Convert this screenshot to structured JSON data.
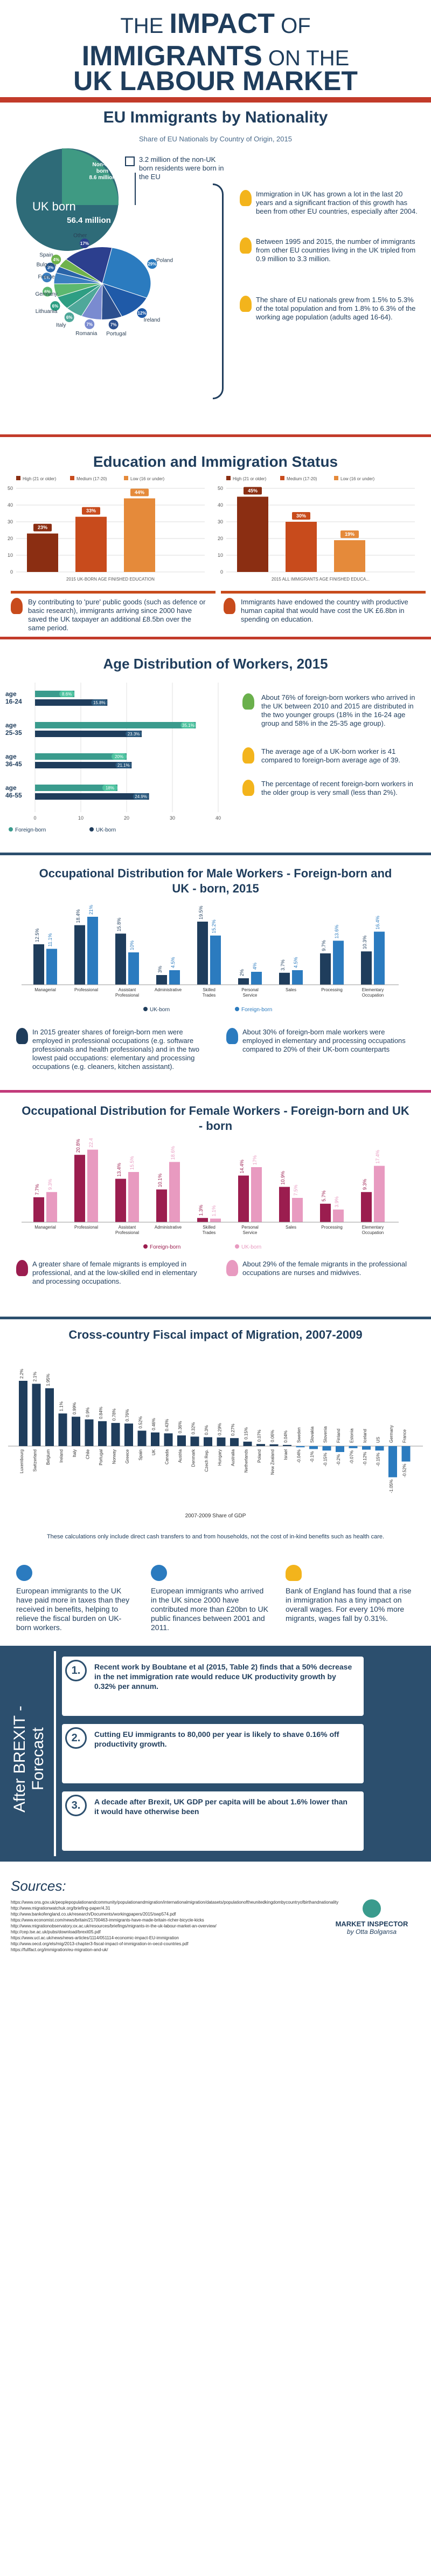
{
  "header": {
    "line1_pre": "THE",
    "line1_bold": "IMPACT",
    "line1_post": "OF",
    "line2_bold": "IMMIGRANTS",
    "line2_post": "ON",
    "line2b": "THE",
    "line3": "UK LABOUR MARKET"
  },
  "colors": {
    "navy": "#1f3d5c",
    "blue": "#2b7bbf",
    "teal": "#3a9b8d",
    "green": "#6ab04c",
    "rust": "#c84b1c",
    "orange": "#e58a3a",
    "pink": "#c23b7a",
    "lightpink": "#e89ac0",
    "darkbar": "#1f3d5c"
  },
  "s1": {
    "title": "EU Immigrants by Nationality",
    "subtitle": "Share of EU Nationals by Country of Origin, 2015",
    "uk_born_label": "UK born",
    "uk_born_value": "56.4 million",
    "nonuk_label": "Non-UK born",
    "nonuk_value": "8.6 million",
    "callout": "3.2 million of the non-UK born residents were born in the EU",
    "note1": "Immigration in UK has grown a lot in the last 20 years and a significant fraction of this growth has been from other EU countries, especially after 2004.",
    "note2": "Between 1995 and 2015, the number of immigrants from other EU countries living in the UK tripled from 0.9 million to 3.3 million.",
    "note3": "The share of EU nationals grew from 1.5% to 5.3% of the total population and from 1.8% to 6.3% of the working age population (adults aged 16-64)."
  },
  "chart_data": [
    {
      "type": "pie",
      "title": "Share of EU Nationals by Country of Origin, 2015",
      "categories": [
        "Poland",
        "Ireland",
        "Portugal",
        "Romania",
        "Italy",
        "Lithuania",
        "Germany",
        "France",
        "Bulgaria",
        "Spain",
        "Other"
      ],
      "values": [
        29,
        12,
        7,
        7,
        6,
        6,
        6,
        5,
        3,
        4,
        17
      ]
    },
    {
      "type": "bar",
      "title": "Education and Immigration Status",
      "xlabel": "2015 UK-BORN AGE FINISHED EDUCATION",
      "categories": [
        "High (21 or older)",
        "Medium (17-20)",
        "Low (16 or under)"
      ],
      "values": [
        23,
        33,
        44
      ],
      "ylim": [
        0,
        50
      ]
    },
    {
      "type": "bar",
      "xlabel": "2015 ALL IMMIGRANTS AGE FINISHED EDUCA...",
      "categories": [
        "High (21 or older)",
        "Medium (17-20)",
        "Low (16 or under)"
      ],
      "values": [
        45,
        30,
        19
      ],
      "ylim": [
        0,
        50
      ]
    },
    {
      "type": "bar",
      "title": "Age Distribution of Workers, 2015",
      "categories": [
        "age 16-24",
        "age 25-35",
        "age 36-45",
        "age 46-55"
      ],
      "series": [
        {
          "name": "Foreign-born",
          "values": [
            8.6,
            35.1,
            20,
            18
          ]
        },
        {
          "name": "UK-born",
          "values": [
            15.8,
            23.3,
            21.1,
            24.9
          ]
        }
      ],
      "xlim": [
        0,
        40
      ]
    },
    {
      "type": "bar",
      "title": "Occupational Distribution for Male Workers - Foreign-born and UK - born, 2015",
      "categories": [
        "Managerial",
        "Professional",
        "Assistant Professional",
        "Administrative",
        "Skilled Trades",
        "Personal Service",
        "Sales",
        "Processing",
        "Elementary Occupation"
      ],
      "series": [
        {
          "name": "UK-born",
          "values": [
            12.5,
            18.4,
            15.8,
            3.0,
            19.5,
            2.0,
            3.7,
            9.7,
            10.3
          ]
        },
        {
          "name": "Foreign-born",
          "values": [
            11.1,
            21.0,
            10.0,
            4.5,
            15.2,
            4.0,
            4.5,
            13.6,
            16.4
          ]
        }
      ],
      "ylim": [
        0,
        25
      ]
    },
    {
      "type": "bar",
      "title": "Occupational Distribution for Female Workers - Foreign-born and UK - born",
      "categories": [
        "Managerial",
        "Professional",
        "Assistant Professional",
        "Administrative",
        "Skilled Trades",
        "Personal Service",
        "Sales",
        "Processing",
        "Elementary Occupation"
      ],
      "series": [
        {
          "name": "Foreign-born",
          "values": [
            7.7,
            20.8,
            13.4,
            10.1,
            1.3,
            14.4,
            10.9,
            5.7,
            9.3
          ]
        },
        {
          "name": "UK-born",
          "values": [
            9.3,
            22.4,
            15.5,
            18.6,
            1.1,
            17.0,
            7.5,
            3.9,
            17.4
          ]
        }
      ],
      "ylim": [
        0,
        25
      ]
    },
    {
      "type": "bar",
      "title": "Cross-country Fiscal impact of Migration, 2007-2009",
      "xlabel": "2007-2009 Share of GDP",
      "categories": [
        "Luxembourg",
        "Switzerland",
        "Belgium",
        "Ireland",
        "Italy",
        "Chile",
        "Portugal",
        "Norway",
        "Greece",
        "Spain",
        "UK",
        "Canada",
        "Austria",
        "Denmark",
        "Czech Rep.",
        "Hungary",
        "Australia",
        "Netherlands",
        "Poland",
        "New Zealand",
        "Israel",
        "Sweden",
        "Slovakia",
        "Slovenia",
        "Finland",
        "Estonia",
        "Iceland",
        "US",
        "Germany",
        "France"
      ],
      "values": [
        2.2,
        2.1,
        1.95,
        1.1,
        0.99,
        0.9,
        0.84,
        0.78,
        0.76,
        0.52,
        0.46,
        0.43,
        0.36,
        0.32,
        0.3,
        0.29,
        0.27,
        0.15,
        0.07,
        0.06,
        0.04,
        -0.04,
        -0.1,
        -0.15,
        -0.2,
        -0.07,
        -0.12,
        -0.15,
        -1.05,
        -0.52
      ],
      "ylim": [
        -1.5,
        2.5
      ]
    }
  ],
  "s2": {
    "title": "Education and Immigration Status",
    "legend": [
      "High (21 or older)",
      "Medium (17-20)",
      "Low (16 or under)"
    ],
    "labels_left": [
      "23%",
      "33%",
      "44%"
    ],
    "labels_right": [
      "45%",
      "30%",
      "19%"
    ],
    "yticks": [
      "0",
      "10",
      "20",
      "30",
      "40",
      "50"
    ],
    "xlabel_left": "2015 UK-BORN AGE FINISHED EDUCATION",
    "xlabel_right": "2015 ALL IMMIGRANTS AGE FINISHED EDUCA...",
    "note_left": "By contributing to 'pure' public goods (such as defence or basic research), immigrants arriving since 2000 have saved the UK taxpayer an additional £8.5bn over the same period.",
    "note_right": "Immigrants have endowed the country with productive human capital that would have cost the UK £6.8bn in spending on education."
  },
  "s3": {
    "title": "Age Distribution of Workers, 2015",
    "rows": [
      {
        "age": "age",
        "range": "16-24",
        "fb": "8.6%",
        "uk": "15.8%"
      },
      {
        "age": "age",
        "range": "25-35",
        "fb": "35.1%",
        "uk": "23.3%"
      },
      {
        "age": "age",
        "range": "36-45",
        "fb": "20%",
        "uk": "21.1%"
      },
      {
        "age": "age",
        "range": "46-55",
        "fb": "18%",
        "uk": "24.9%"
      }
    ],
    "xticks": [
      "0",
      "10",
      "20",
      "30",
      "40"
    ],
    "legend_fb": "Foreign-born",
    "legend_uk": "UK-born",
    "note1": "About 76% of foreign-born workers who arrived in the UK between 2010 and 2015 are distributed in the two younger groups (18% in the 16-24 age group and 58% in the 25-35 age group).",
    "note2": "The average age of a UK-born worker is 41 compared to foreign-born average age of 39.",
    "note3": "The percentage of recent foreign-born workers in the older group is very small (less than 2%)."
  },
  "s4": {
    "title": "Occupational Distribution for Male Workers - Foreign-born and UK - born, 2015",
    "labels_uk": [
      "12.5%",
      "18.4%",
      "15.8%",
      "3%",
      "19.5%",
      "2%",
      "3.7%",
      "9.7%",
      "10.3%"
    ],
    "labels_fb": [
      "11.1%",
      "21%",
      "10%",
      "4.5%",
      "15.2%",
      "4%",
      "4.5%",
      "13.6%",
      "16.4%"
    ],
    "legend_uk": "UK-born",
    "legend_fb": "Foreign-born",
    "note_left": "In 2015 greater shares of foreign-born men were employed in professional occupations (e.g. software professionals and health professionals) and in the two lowest paid occupations: elementary and processing occupations (e.g. cleaners, kitchen assistant).",
    "note_right": "About 30% of foreign-born male workers were employed in elementary and processing occupations compared to 20% of their UK-born counterparts"
  },
  "s5": {
    "title": "Occupational Distribution for Female Workers - Foreign-born and UK - born",
    "labels_fb": [
      "7.7%",
      "20.8%",
      "13.4%",
      "10.1%",
      "1.3%",
      "14.4%",
      "10.9%",
      "5.7%",
      "9.3%"
    ],
    "labels_uk": [
      "9.3%",
      "22.4%",
      "15.5%",
      "18.6%",
      "1.1%",
      "17%",
      "7.5%",
      "3.9%",
      "17.4%"
    ],
    "legend_fb": "Foreign-born",
    "legend_uk": "UK-born",
    "note_left": "A greater share of female migrants is employed in professional, and at the low-skilled end in elementary and processing occupations.",
    "note_right": "About 29% of the female migrants in the professional occupations are nurses and midwives."
  },
  "s6": {
    "title": "Cross-country Fiscal impact of Migration, 2007-2009",
    "xlabel": "2007-2009 Share of GDP",
    "value_labels": [
      "2.2%",
      "2.1%",
      "1.95%",
      "1.1%",
      "0.99%",
      "0.9%",
      "0.84%",
      "0.78%",
      "0.76%",
      "0.52%",
      "0.46%",
      "0.43%",
      "0.36%",
      "0.32%",
      "0.3%",
      "0.29%",
      "0.27%",
      "0.15%",
      "0.07%",
      "0.06%",
      "0.04%",
      "-0.04%",
      "-0.1%",
      "-0.15%",
      "-0.2%",
      "-0.07%",
      "-0.12%",
      "-0.15%",
      "-1.05%",
      "-0.52%"
    ],
    "footnote": "These calculations only include direct cash transfers to and from households, not the cost of in-kind benefits such as health care.",
    "note1": "European immigrants to the UK have paid more in taxes than they received in benefits, helping to relieve the fiscal burden on UK-born workers.",
    "note2": "European immigrants who arrived in the UK since 2000 have contributed more than £20bn to UK public finances between 2001 and 2011.",
    "note3": "Bank of England has found that a rise in immigration has a tiny impact on overall wages. For every 10% more migrants, wages fall by 0.31%."
  },
  "brexit": {
    "title": "After BREXIT - Forecast",
    "items": [
      {
        "num": "1.",
        "text": "Recent work by Boubtane et al (2015, Table 2) finds that a 50% decrease in the net immigration rate would reduce UK productivity growth by 0.32% per annum."
      },
      {
        "num": "2.",
        "text": "Cutting EU immigrants to 80,000 per year is likely to shave 0.16% off productivity growth."
      },
      {
        "num": "3.",
        "text": "A decade after Brexit, UK GDP per capita will be about 1.6% lower than it would have otherwise been"
      }
    ]
  },
  "sources": {
    "title": "Sources:",
    "lines": [
      "https://www.ons.gov.uk/peoplepopulationandcommunity/populationandmigration/internationalmigration/datasets/populationoftheunitedkingdombycountryofbirthandnationality",
      "http://www.migrationwatchuk.org/briefing-paper/4.31",
      "http://www.bankofengland.co.uk/research/Documents/workingpapers/2015/swp574.pdf",
      "https://www.economist.com/news/britain/21700463-immigrants-have-made-britain-richer-bicycle-kicks",
      "http://www.migrationobservatory.ox.ac.uk/resources/briefings/migrants-in-the-uk-labour-market-an-overview/",
      "http://cep.lse.ac.uk/pubs/download/brexit05.pdf",
      "https://www.ucl.ac.uk/news/news-articles/1114/051114-economic-impact-EU-immigration",
      "http://www.oecd.org/els/mig/2013-chapter3-fiscal-impact-of-immigration-in-oecd-countries.pdf",
      "https://fullfact.org/immigration/eu-migration-and-uk/"
    ]
  },
  "brand": {
    "name": "MARKET INSPECTOR",
    "by": "by Otta Bolgansa"
  }
}
